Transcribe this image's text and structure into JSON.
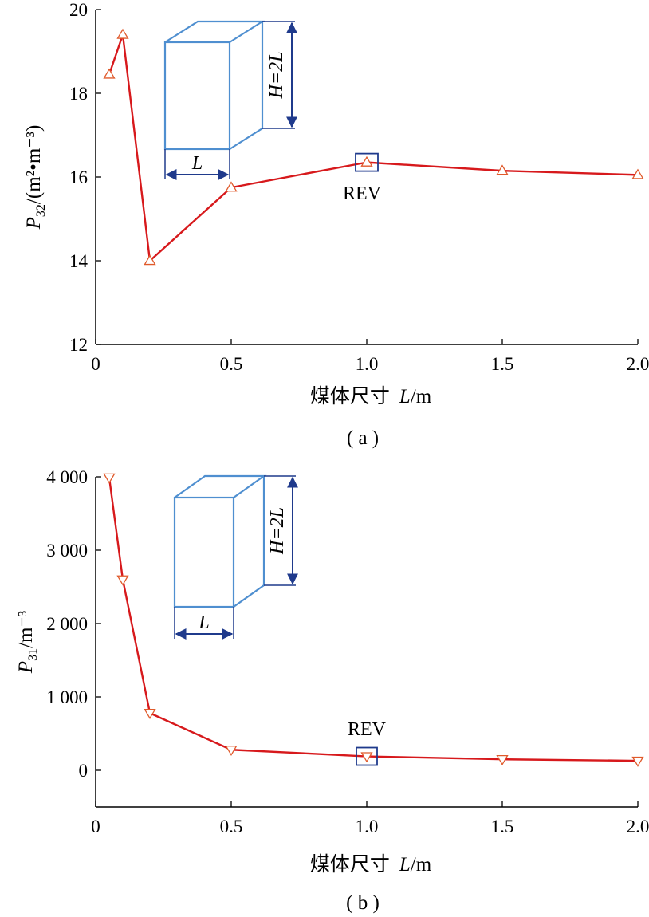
{
  "chart_data": [
    {
      "type": "line",
      "panel_label": "( a )",
      "xlabel_text": "煤体尺寸",
      "xlabel_var": "L",
      "xlabel_unit": "/m",
      "ylabel_var": "P",
      "ylabel_sub": "32",
      "ylabel_unit": "/(m²•m⁻³)",
      "xlim": [
        0,
        2.0
      ],
      "ylim": [
        12,
        20
      ],
      "xticks": [
        {
          "value": 0,
          "label": "0"
        },
        {
          "value": 0.5,
          "label": "0.5"
        },
        {
          "value": 1.0,
          "label": "1.0"
        },
        {
          "value": 1.5,
          "label": "1.5"
        },
        {
          "value": 2.0,
          "label": "2.0"
        }
      ],
      "yticks": [
        {
          "value": 12,
          "label": "12"
        },
        {
          "value": 14,
          "label": "14"
        },
        {
          "value": 16,
          "label": "16"
        },
        {
          "value": 18,
          "label": "18"
        },
        {
          "value": 20,
          "label": "20"
        }
      ],
      "marker": "triangle-up",
      "series_color": "#d7191c",
      "x": [
        0.05,
        0.1,
        0.2,
        0.5,
        1.0,
        1.5,
        2.0
      ],
      "y": [
        18.45,
        19.4,
        14.0,
        15.75,
        16.35,
        16.15,
        16.05
      ],
      "rev": {
        "label": "REV",
        "x": 1.0,
        "y": 16.35
      },
      "inset": {
        "width_label": "L",
        "height_label": "H=2L"
      }
    },
    {
      "type": "line",
      "panel_label": "( b )",
      "xlabel_text": "煤体尺寸",
      "xlabel_var": "L",
      "xlabel_unit": "/m",
      "ylabel_var": "P",
      "ylabel_sub": "31",
      "ylabel_unit": "/m⁻³",
      "xlim": [
        0,
        2.0
      ],
      "ylim": [
        -500,
        4000
      ],
      "xticks": [
        {
          "value": 0,
          "label": "0"
        },
        {
          "value": 0.5,
          "label": "0.5"
        },
        {
          "value": 1.0,
          "label": "1.0"
        },
        {
          "value": 1.5,
          "label": "1.5"
        },
        {
          "value": 2.0,
          "label": "2.0"
        }
      ],
      "yticks": [
        {
          "value": 0,
          "label": "0"
        },
        {
          "value": 1000,
          "label": "1 000"
        },
        {
          "value": 2000,
          "label": "2 000"
        },
        {
          "value": 3000,
          "label": "3 000"
        },
        {
          "value": 4000,
          "label": "4 000"
        }
      ],
      "marker": "triangle-down",
      "series_color": "#d7191c",
      "x": [
        0.05,
        0.1,
        0.2,
        0.5,
        1.0,
        1.5,
        2.0
      ],
      "y": [
        3990,
        2600,
        780,
        280,
        190,
        150,
        130
      ],
      "rev": {
        "label": "REV",
        "x": 1.0,
        "y": 190
      },
      "inset": {
        "width_label": "L",
        "height_label": "H=2L"
      }
    }
  ],
  "colors": {
    "line": "#d7191c",
    "marker": "#e05a2b",
    "cube": "#4f8fd0",
    "arrow": "#1f3a8c",
    "rev_box": "#1f3a8c"
  }
}
